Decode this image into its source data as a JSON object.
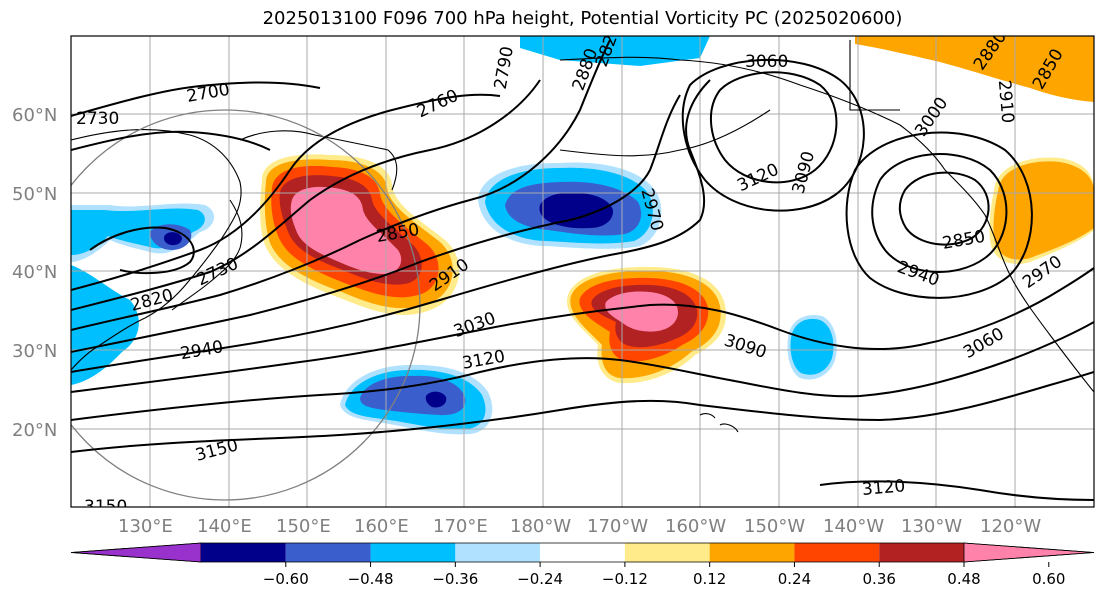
{
  "title": "2025013100 F096 700 hPa height, Potential Vorticity PC (2025020600)",
  "lat_labels": [
    "60°N",
    "50°N",
    "40°N",
    "30°N",
    "20°N"
  ],
  "lon_labels": [
    "130°E",
    "140°E",
    "150°E",
    "160°E",
    "170°E",
    "180°W",
    "170°W",
    "160°W",
    "150°W",
    "140°W",
    "130°W",
    "120°W"
  ],
  "contour_labels": [
    "2700",
    "2730",
    "2760",
    "2790",
    "2820",
    "2850",
    "2880",
    "2910",
    "2940",
    "2970",
    "3000",
    "3030",
    "3060",
    "3090",
    "3120",
    "3150",
    "2730",
    "2850",
    "2940",
    "2970",
    "3060",
    "3090",
    "3120",
    "3120",
    "3150",
    "2880",
    "2910",
    "2850",
    "2820"
  ],
  "colorbar": {
    "ticks": [
      "−0.60",
      "−0.48",
      "−0.36",
      "−0.24",
      "−0.12",
      "0.12",
      "0.24",
      "0.36",
      "0.48",
      "0.60"
    ],
    "colors": [
      "#9932cc",
      "#00008b",
      "#3a5fcd",
      "#00bfff",
      "#b0e2ff",
      "#ffffff",
      "#ffeb8a",
      "#ffa500",
      "#ff4500",
      "#b22222",
      "#ff82ab"
    ]
  },
  "colors": {
    "height_contour": "#000000",
    "coastline": "#000000",
    "grid": "#a9a9a9",
    "circle": "#808080",
    "axis_label": "#808080"
  }
}
